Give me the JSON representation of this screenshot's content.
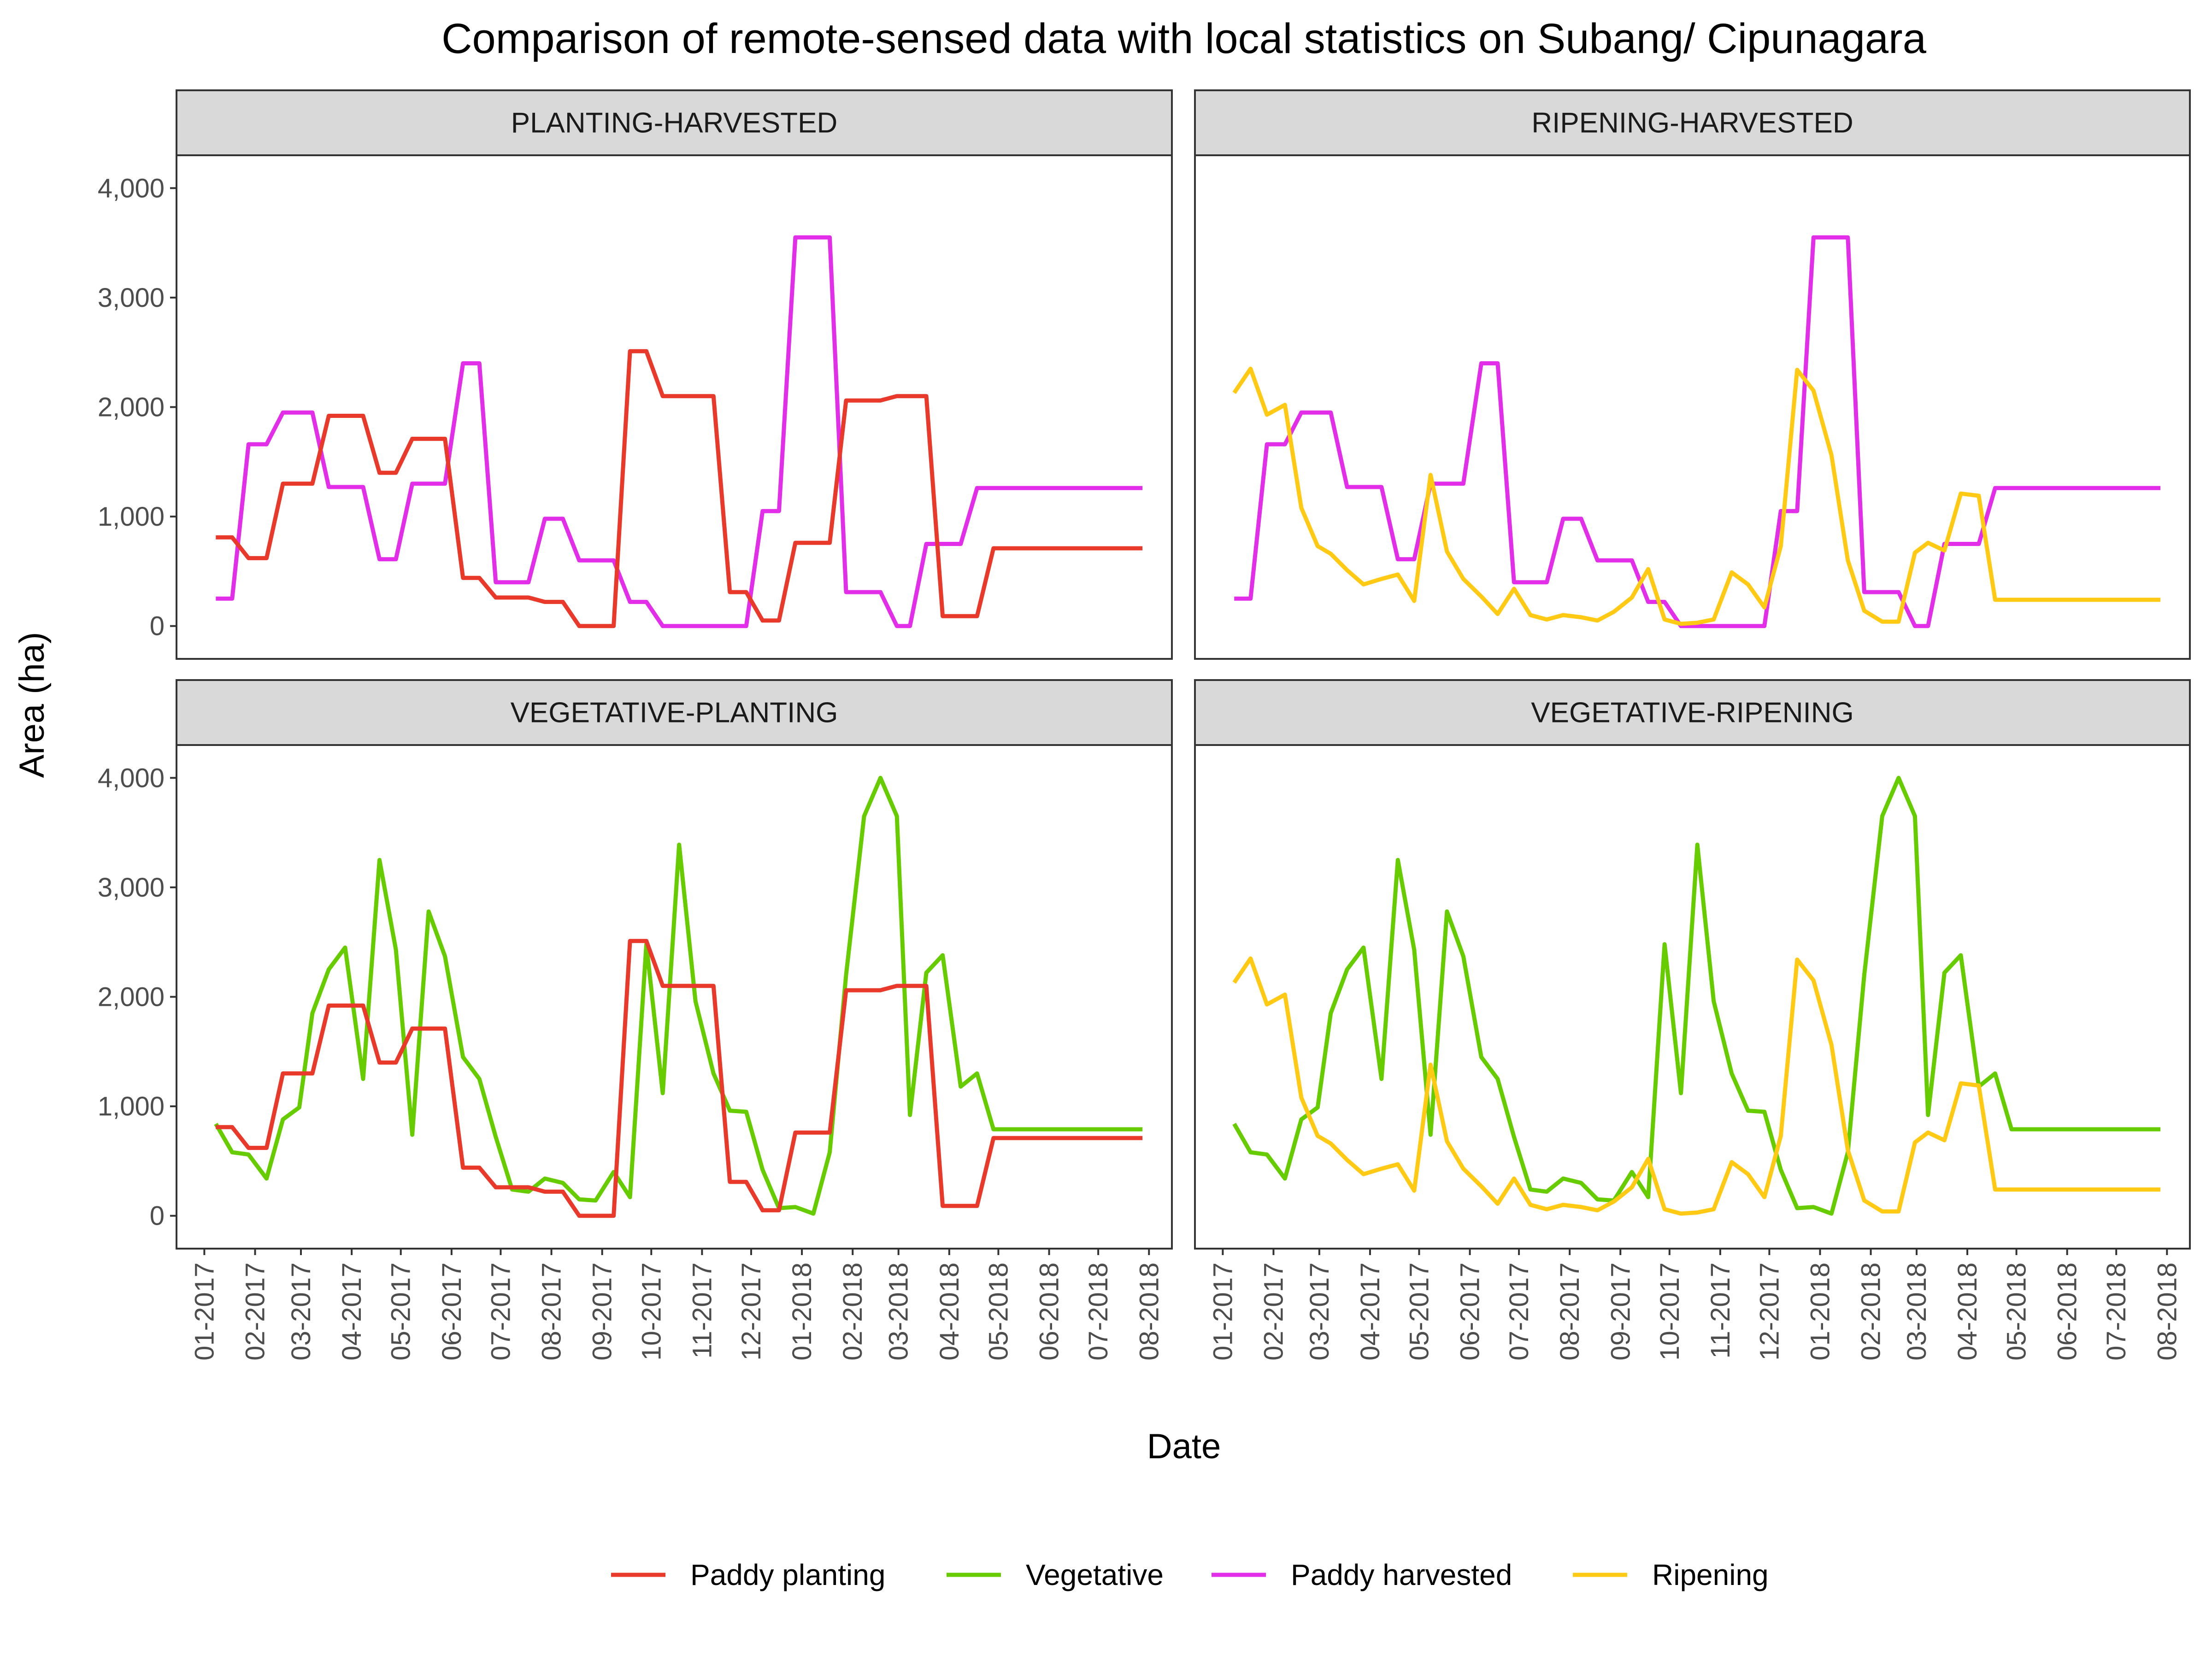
{
  "chart_data": {
    "type": "line",
    "title": "Comparison of remote-sensed data with local statistics on Subang/ Cipunagara",
    "xlabel": "Date",
    "ylabel": "Area (ha)",
    "ylim": [
      -300,
      4300
    ],
    "yticks": [
      0,
      1000,
      2000,
      3000,
      4000
    ],
    "ytick_labels": [
      "0",
      "1,000",
      "2,000",
      "3,000",
      "4,000"
    ],
    "x_range": [
      "2016-12-15",
      "2018-08-15"
    ],
    "xticks": [
      "2017-01-01",
      "2017-02-01",
      "2017-03-01",
      "2017-04-01",
      "2017-05-01",
      "2017-06-01",
      "2017-07-01",
      "2017-08-01",
      "2017-09-01",
      "2017-10-01",
      "2017-11-01",
      "2017-12-01",
      "2018-01-01",
      "2018-02-01",
      "2018-03-01",
      "2018-04-01",
      "2018-05-01",
      "2018-06-01",
      "2018-07-01",
      "2018-08-01"
    ],
    "xtick_labels": [
      "01-2017",
      "02-2017",
      "03-2017",
      "04-2017",
      "05-2017",
      "06-2017",
      "07-2017",
      "08-2017",
      "09-2017",
      "10-2017",
      "11-2017",
      "12-2017",
      "01-2018",
      "02-2018",
      "03-2018",
      "04-2018",
      "05-2018",
      "06-2018",
      "07-2018",
      "08-2018"
    ],
    "dates": [
      "2017-01-08",
      "2017-01-18",
      "2017-01-28",
      "2017-02-08",
      "2017-02-18",
      "2017-02-28",
      "2017-03-08",
      "2017-03-18",
      "2017-03-28",
      "2017-04-08",
      "2017-04-18",
      "2017-04-28",
      "2017-05-08",
      "2017-05-18",
      "2017-05-28",
      "2017-06-08",
      "2017-06-18",
      "2017-06-28",
      "2017-07-08",
      "2017-07-18",
      "2017-07-28",
      "2017-08-08",
      "2017-08-18",
      "2017-08-28",
      "2017-09-08",
      "2017-09-18",
      "2017-09-28",
      "2017-10-08",
      "2017-10-18",
      "2017-10-28",
      "2017-11-08",
      "2017-11-18",
      "2017-11-28",
      "2017-12-08",
      "2017-12-18",
      "2017-12-28",
      "2018-01-08",
      "2018-01-18",
      "2018-01-28",
      "2018-02-08",
      "2018-02-18",
      "2018-02-28",
      "2018-03-08",
      "2018-03-18",
      "2018-03-28",
      "2018-04-08",
      "2018-04-18",
      "2018-04-28",
      "2018-05-08",
      "2018-05-18",
      "2018-05-28",
      "2018-06-08",
      "2018-06-18",
      "2018-06-28",
      "2018-07-08",
      "2018-07-18",
      "2018-07-28"
    ],
    "series": [
      {
        "name": "Paddy planting",
        "color": "#E8392B",
        "values": [
          810,
          810,
          620,
          620,
          1300,
          1300,
          1300,
          1920,
          1920,
          1920,
          1400,
          1400,
          1710,
          1710,
          1710,
          440,
          440,
          260,
          260,
          260,
          220,
          220,
          0,
          0,
          0,
          2510,
          2510,
          2100,
          2100,
          2100,
          2100,
          310,
          310,
          50,
          50,
          760,
          760,
          760,
          2060,
          2060,
          2060,
          2100,
          2100,
          2100,
          90,
          90,
          90,
          710,
          710,
          710,
          710,
          710,
          710,
          710,
          710,
          710,
          710
        ]
      },
      {
        "name": "Vegetative",
        "color": "#66CC00",
        "values": [
          840,
          580,
          560,
          340,
          880,
          990,
          1850,
          2250,
          2450,
          1250,
          3250,
          2430,
          740,
          2780,
          2370,
          1450,
          1250,
          720,
          240,
          220,
          340,
          300,
          150,
          140,
          400,
          170,
          2480,
          1120,
          3390,
          1960,
          1300,
          960,
          950,
          420,
          70,
          80,
          20,
          580,
          2200,
          3650,
          4000,
          3650,
          920,
          2220,
          2380,
          1180,
          1300,
          790,
          790,
          790,
          790,
          790,
          790,
          790,
          790,
          790,
          790
        ]
      },
      {
        "name": "Paddy harvested",
        "color": "#E22EE8",
        "values": [
          250,
          250,
          1660,
          1660,
          1950,
          1950,
          1950,
          1270,
          1270,
          1270,
          610,
          610,
          1300,
          1300,
          1300,
          2400,
          2400,
          400,
          400,
          400,
          980,
          980,
          600,
          600,
          600,
          220,
          220,
          0,
          0,
          0,
          0,
          0,
          0,
          1050,
          1050,
          3550,
          3550,
          3550,
          310,
          310,
          310,
          0,
          0,
          750,
          750,
          750,
          1260,
          1260,
          1260,
          1260,
          1260,
          1260,
          1260,
          1260,
          1260,
          1260,
          1260
        ]
      },
      {
        "name": "Ripening",
        "color": "#FFC914",
        "values": [
          2130,
          2350,
          1930,
          2020,
          1080,
          730,
          660,
          510,
          380,
          430,
          470,
          230,
          1380,
          680,
          430,
          270,
          110,
          340,
          100,
          60,
          100,
          80,
          50,
          130,
          260,
          520,
          60,
          20,
          30,
          60,
          490,
          380,
          170,
          730,
          2340,
          2150,
          1560,
          600,
          140,
          40,
          40,
          670,
          760,
          690,
          1210,
          1190,
          240,
          240,
          240,
          240,
          240,
          240,
          240,
          240,
          240,
          240,
          240
        ]
      }
    ],
    "panels": [
      {
        "label": "PLANTING-HARVESTED",
        "series": [
          "Paddy harvested",
          "Paddy planting"
        ]
      },
      {
        "label": "RIPENING-HARVESTED",
        "series": [
          "Paddy harvested",
          "Ripening"
        ]
      },
      {
        "label": "VEGETATIVE-PLANTING",
        "series": [
          "Vegetative",
          "Paddy planting"
        ]
      },
      {
        "label": "VEGETATIVE-RIPENING",
        "series": [
          "Vegetative",
          "Ripening"
        ]
      }
    ],
    "legend_position": "bottom",
    "grid": false
  }
}
